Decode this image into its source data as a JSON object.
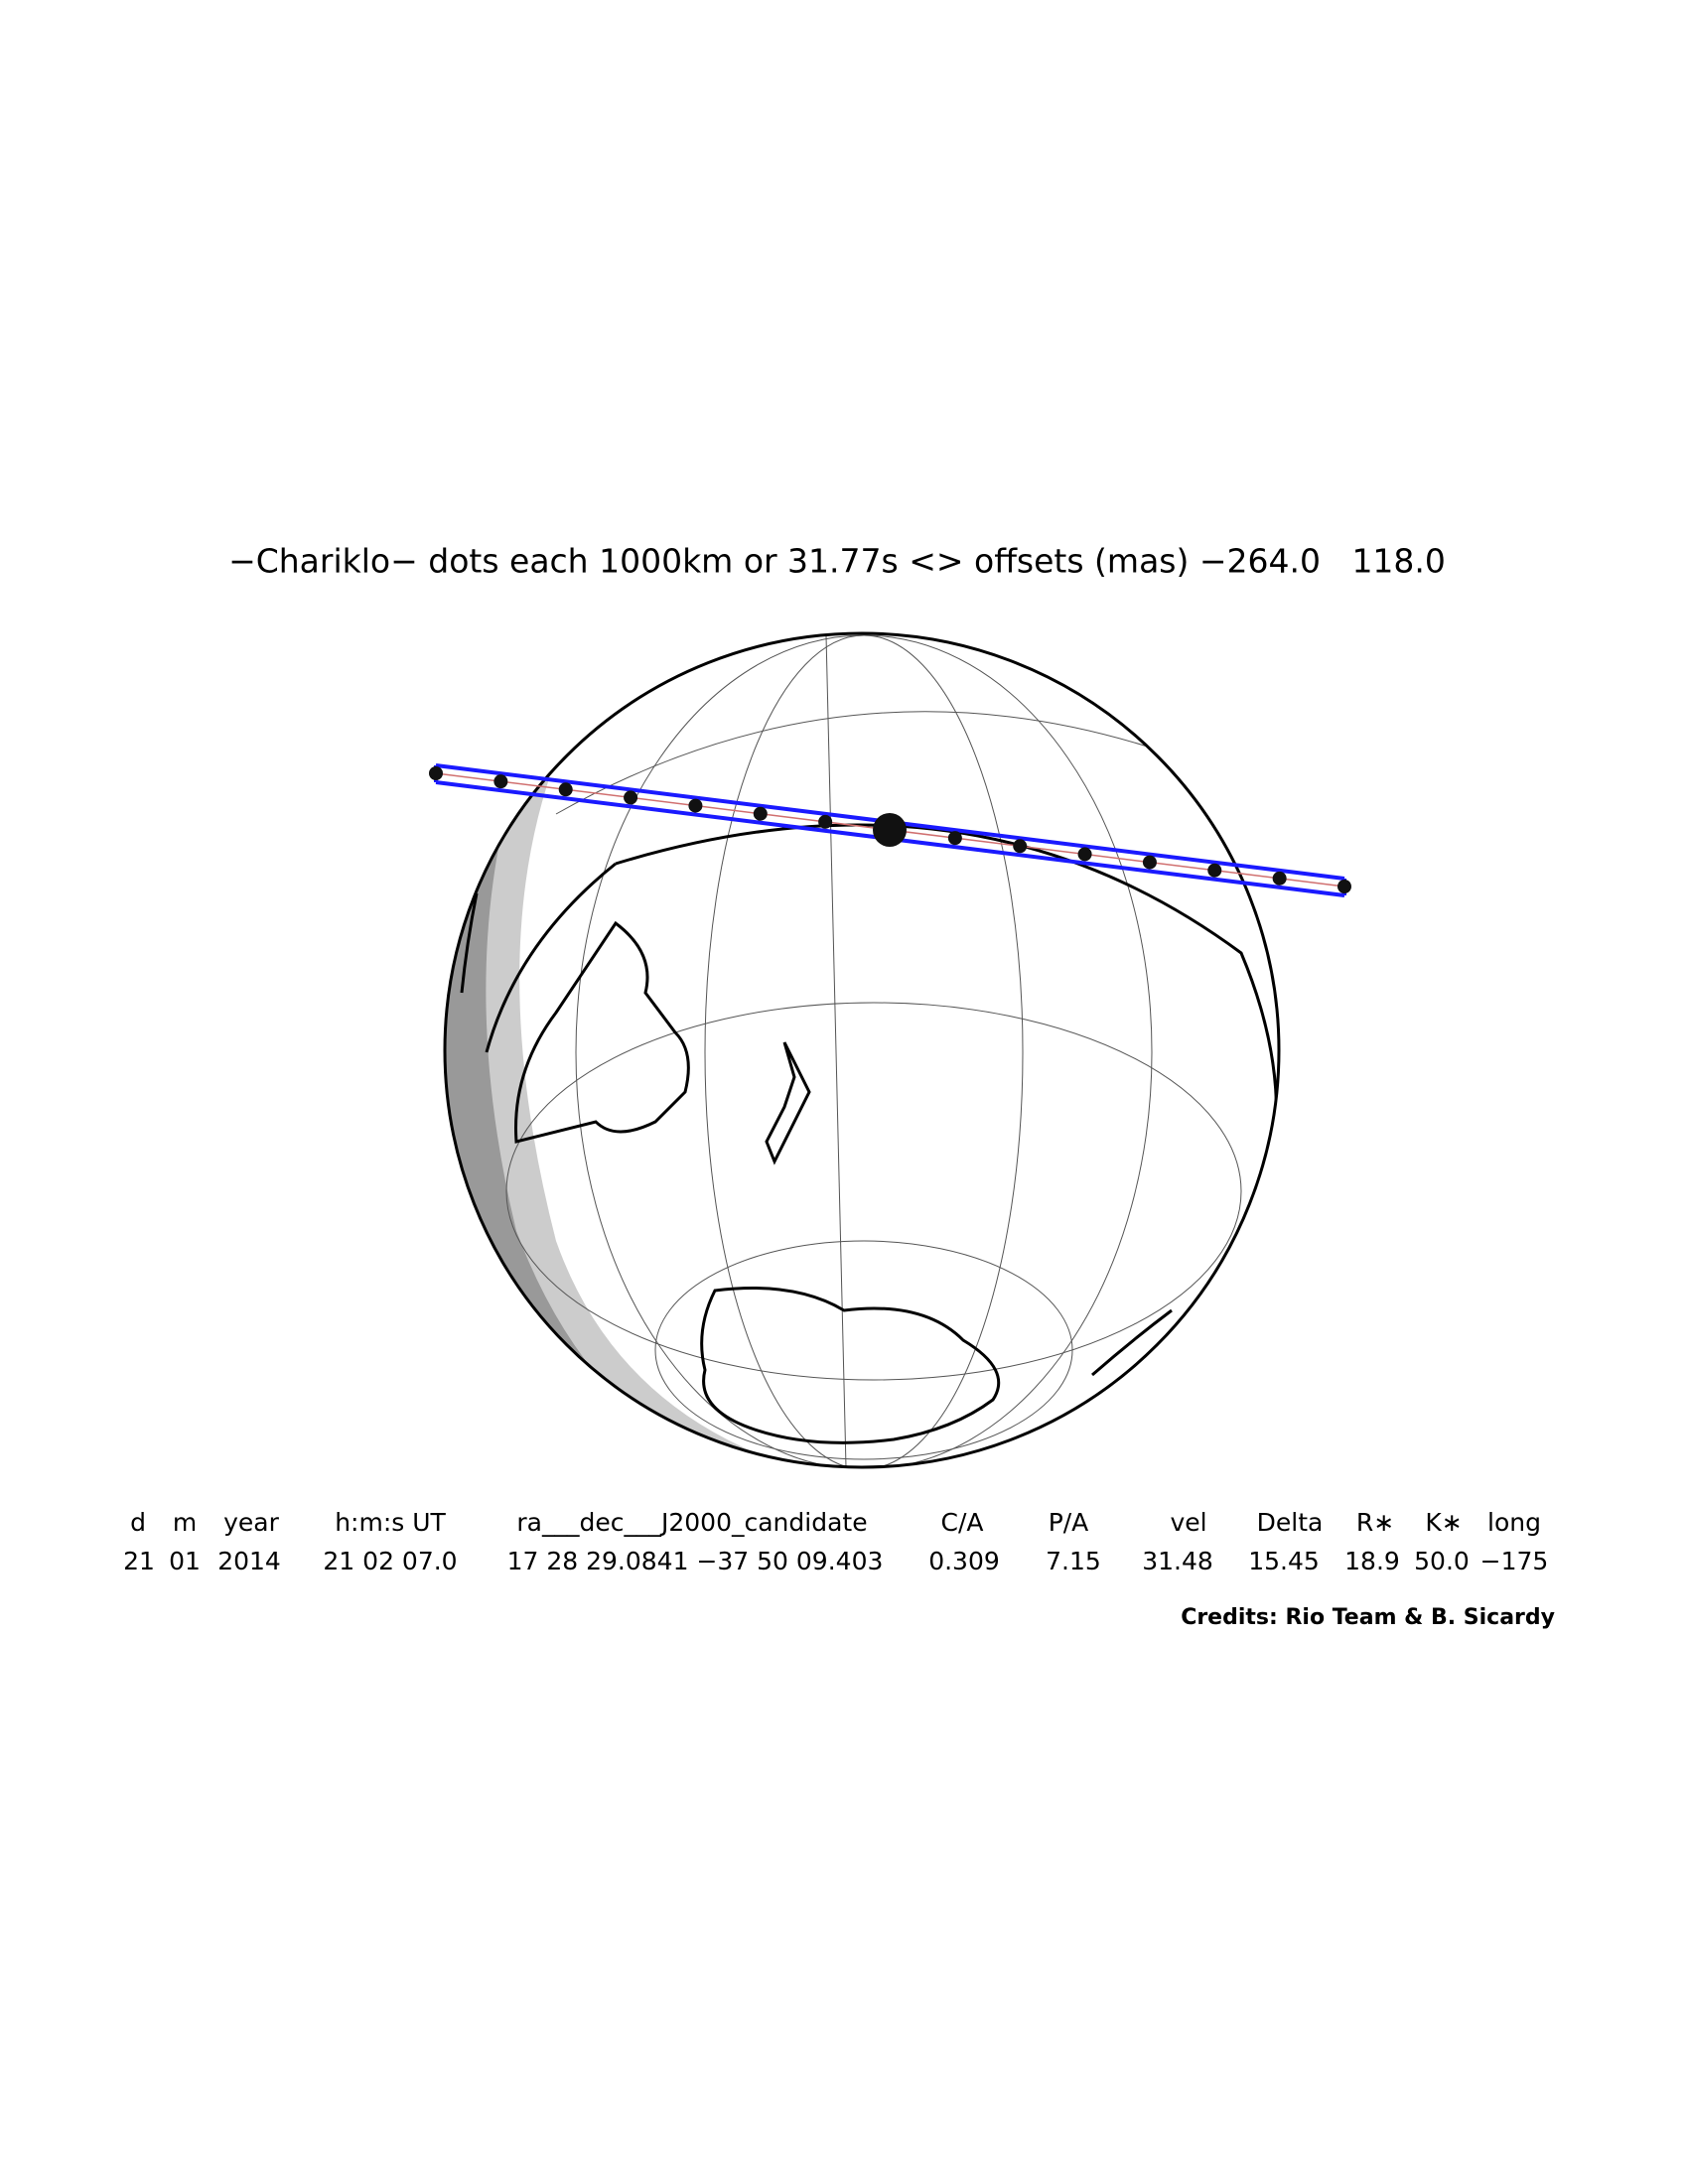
{
  "title": "−Chariklo− dots each 1000km or 31.77s <> offsets (mas) −264.0   118.0",
  "table": {
    "header": [
      "d",
      "m",
      "year",
      "h:m:s UT",
      "ra___dec___J2000_candidate",
      "C/A",
      "P/A",
      "vel",
      "Delta",
      "R∗",
      "K∗",
      "long"
    ],
    "values": [
      "21",
      "01",
      "2014",
      "21 02 07.0",
      "17 28 29.0841 −37 50 09.403",
      "0.309",
      "7.15",
      "31.48",
      "15.45",
      "18.9",
      "50.0",
      "−175"
    ]
  },
  "credits": "Credits: Rio Team & B. Sicardy"
}
